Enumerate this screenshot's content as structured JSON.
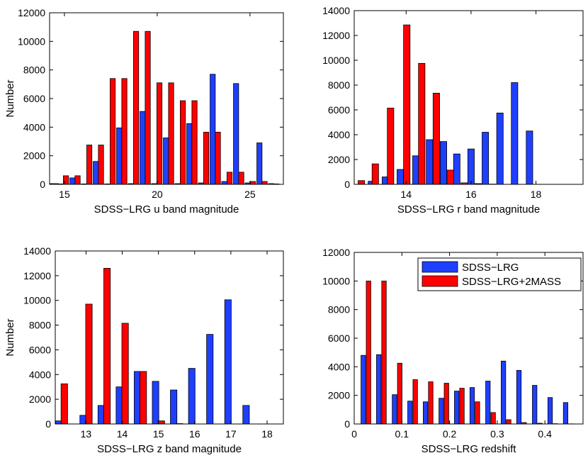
{
  "colors": {
    "sdss_lrg": "#1f3fff",
    "sdss_lrg_2mass": "#ff0000"
  },
  "chart_data": [
    {
      "type": "bar",
      "id": "u",
      "xlabel": "SDSS−LRG u band magnitude",
      "ylabel": "Number",
      "xlim": [
        14.2,
        26.8
      ],
      "ylim": [
        0,
        12000
      ],
      "xticks": [
        15,
        20,
        25
      ],
      "xtick_labels": [
        "15",
        "20",
        "25"
      ],
      "yticks": [
        0,
        2000,
        4000,
        6000,
        8000,
        10000,
        12000
      ],
      "ytick_labels": [
        "0",
        "2000",
        "4000",
        "6000",
        "8000",
        "10000",
        "12000"
      ],
      "bar_width": 0.28,
      "series": [
        {
          "name": "SDSS−LRG",
          "color_key": "sdss_lrg",
          "x": [
            14.25,
            14.8,
            15.43,
            16.06,
            16.69,
            17.32,
            17.95,
            18.58,
            19.21,
            19.84,
            20.47,
            21.1,
            21.73,
            22.36,
            22.99,
            23.62,
            24.25,
            24.88,
            25.51,
            26.14
          ],
          "values": [
            50,
            30,
            450,
            30,
            1600,
            30,
            3950,
            50,
            5100,
            50,
            3250,
            50,
            4250,
            100,
            7700,
            200,
            7050,
            100,
            2900,
            50
          ]
        },
        {
          "name": "SDSS−LRG+2MASS",
          "color_key": "sdss_lrg_2mass",
          "x": [
            14.53,
            15.08,
            15.71,
            16.34,
            16.97,
            17.6,
            18.23,
            18.86,
            19.49,
            20.12,
            20.75,
            21.38,
            22.01,
            22.64,
            23.27,
            23.9,
            24.53,
            25.16,
            25.79,
            26.42
          ],
          "values": [
            50,
            600,
            600,
            2750,
            2750,
            7400,
            7400,
            10700,
            10700,
            7100,
            7100,
            5850,
            5850,
            3650,
            3650,
            850,
            850,
            200,
            200,
            30
          ]
        }
      ]
    },
    {
      "type": "bar",
      "id": "r",
      "xlabel": "SDSS−LRG r band magnitude",
      "ylabel": "",
      "xlim": [
        12.4,
        19.45
      ],
      "ylim": [
        0,
        14000
      ],
      "xticks": [
        14,
        16,
        18
      ],
      "xtick_labels": [
        "14",
        "16",
        "18"
      ],
      "yticks": [
        0,
        2000,
        4000,
        6000,
        8000,
        10000,
        12000,
        14000
      ],
      "ytick_labels": [
        "0",
        "2000",
        "4000",
        "6000",
        "8000",
        "10000",
        "12000",
        "14000"
      ],
      "bar_width": 0.2,
      "series": [
        {
          "name": "SDSS−LRG",
          "color_key": "sdss_lrg",
          "x": [
            12.93,
            13.36,
            13.82,
            14.3,
            14.72,
            15.15,
            15.56,
            16.0,
            16.44,
            16.89,
            17.34,
            17.8,
            18.24,
            18.62,
            19.0
          ],
          "values": [
            250,
            600,
            1200,
            2300,
            3600,
            3450,
            2450,
            2850,
            4200,
            5750,
            8200,
            4300,
            0,
            0,
            0
          ]
        },
        {
          "name": "SDSS−LRG+2MASS",
          "color_key": "sdss_lrg_2mass",
          "x": [
            12.62,
            13.05,
            13.52,
            14.02,
            14.48,
            14.93,
            15.36,
            15.79,
            16.22,
            16.66,
            17.12,
            17.56,
            17.98,
            18.4,
            18.8
          ],
          "values": [
            300,
            1650,
            6150,
            12850,
            9750,
            7350,
            1150,
            120,
            60,
            20,
            0,
            0,
            0,
            0,
            0
          ]
        }
      ]
    },
    {
      "type": "bar",
      "id": "z",
      "xlabel": "SDSS−LRG z band magnitude",
      "ylabel": "Number",
      "xlim": [
        12.15,
        18.45
      ],
      "ylim": [
        0,
        14000
      ],
      "xticks": [
        13,
        14,
        15,
        16,
        17,
        18
      ],
      "xtick_labels": [
        "13",
        "14",
        "15",
        "16",
        "17",
        "18"
      ],
      "yticks": [
        0,
        2000,
        4000,
        6000,
        8000,
        10000,
        12000,
        14000
      ],
      "ytick_labels": [
        "0",
        "2000",
        "4000",
        "6000",
        "8000",
        "10000",
        "12000",
        "14000"
      ],
      "bar_width": 0.18,
      "series": [
        {
          "name": "SDSS−LRG",
          "color_key": "sdss_lrg",
          "x": [
            12.25,
            12.92,
            13.42,
            13.92,
            14.42,
            14.92,
            15.42,
            15.92,
            16.42,
            16.92,
            17.42,
            17.92
          ],
          "values": [
            250,
            700,
            1500,
            3000,
            4250,
            3450,
            2750,
            4500,
            7250,
            10050,
            1500,
            0
          ]
        },
        {
          "name": "SDSS−LRG+2MASS",
          "color_key": "sdss_lrg_2mass",
          "x": [
            12.4,
            13.08,
            13.58,
            14.08,
            14.58,
            15.08,
            15.58,
            16.08,
            16.58,
            17.08,
            17.58,
            18.08
          ],
          "values": [
            3250,
            9700,
            12600,
            8150,
            4250,
            250,
            30,
            0,
            0,
            0,
            0,
            0
          ]
        }
      ]
    },
    {
      "type": "bar",
      "id": "redshift",
      "xlabel": "SDSS−LRG redshift",
      "ylabel": "",
      "xlim": [
        0,
        0.48
      ],
      "ylim": [
        0,
        12000
      ],
      "xticks": [
        0,
        0.1,
        0.2,
        0.3,
        0.4
      ],
      "xtick_labels": [
        "0",
        "0.1",
        "0.2",
        "0.3",
        "0.4"
      ],
      "yticks": [
        0,
        2000,
        4000,
        6000,
        8000,
        10000,
        12000
      ],
      "ytick_labels": [
        "0",
        "2000",
        "4000",
        "6000",
        "8000",
        "10000",
        "12000"
      ],
      "bar_width": 0.0095,
      "legend": {
        "position": "top-right",
        "entries": [
          "SDSS−LRG",
          "SDSS−LRG+2MASS"
        ]
      },
      "series": [
        {
          "name": "SDSS−LRG",
          "color_key": "sdss_lrg",
          "x": [
            0.019,
            0.0515,
            0.0845,
            0.117,
            0.1495,
            0.1825,
            0.215,
            0.2475,
            0.2805,
            0.313,
            0.3455,
            0.3785,
            0.411,
            0.4435
          ],
          "values": [
            4800,
            4850,
            2050,
            1600,
            1550,
            1800,
            2300,
            2550,
            3000,
            4400,
            3750,
            2700,
            1850,
            1500
          ]
        },
        {
          "name": "SDSS−LRG+2MASS",
          "color_key": "sdss_lrg_2mass",
          "x": [
            0.03,
            0.0625,
            0.0955,
            0.128,
            0.1605,
            0.1935,
            0.226,
            0.2585,
            0.2915,
            0.324,
            0.3565,
            0.3895,
            0.422,
            0.4545
          ],
          "values": [
            10000,
            10000,
            4250,
            3100,
            2950,
            2850,
            2500,
            1550,
            800,
            300,
            100,
            50,
            20,
            10
          ]
        }
      ]
    }
  ]
}
